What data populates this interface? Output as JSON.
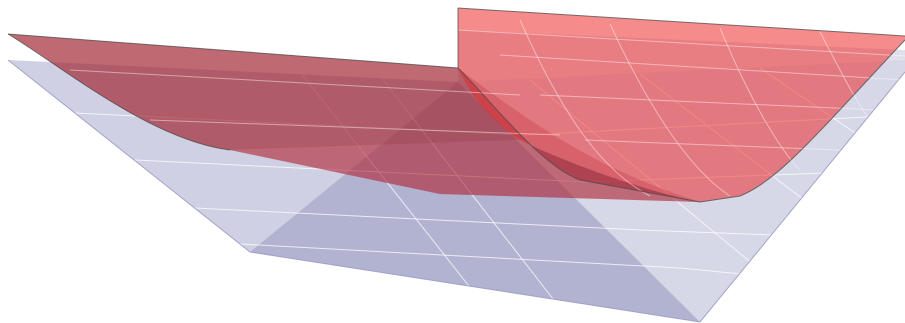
{
  "figure": {
    "kind": "3d-surface-plot",
    "surfaces": [
      {
        "id": "lower-surface",
        "shape": "inverted pyramid / V-trough",
        "fill": "#8c8fbc",
        "opacity": 0.45
      },
      {
        "id": "upper-surface",
        "shape": "smooth U-shaped trough",
        "fill": "#ee2b2b",
        "opacity": 0.55
      }
    ],
    "mesh_color": "#ffffff",
    "edge_color": "#555555",
    "background": "#ffffff",
    "labels": []
  }
}
